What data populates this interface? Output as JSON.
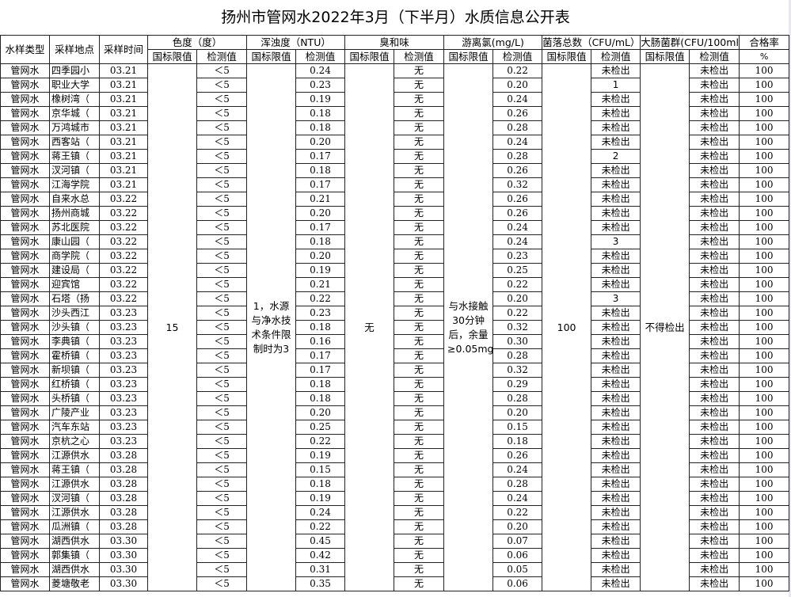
{
  "title": "扬州市管网水2022年3月（下半月）水质信息公开表",
  "headers": {
    "type": "水样类型",
    "location": "采样地点",
    "date": "采样时间",
    "color": "色度（度）",
    "turbidity": "浑浊度（NTU）",
    "odor": "臭和味",
    "chlorine": "游离氯(mg/L)",
    "bacteria": "菌落总数（CFU/mL）",
    "coliform": "大肠菌群(CFU/100ml",
    "rate": "合格率",
    "rate_unit": "%",
    "standard": "国标限值",
    "measured": "检测值"
  },
  "standards": {
    "color": "15",
    "turbidity": "1，水源与净水技术条件限制时为3",
    "odor": "无",
    "chlorine": "与水接触30分钟后，余量≥0.05mg/L",
    "bacteria": "100",
    "coliform": "不得检出"
  },
  "rows": [
    [
      "管网水",
      "四季园小",
      "03.21",
      "＜5",
      "0.24",
      "无",
      "0.22",
      "未检出",
      "未检出",
      "100"
    ],
    [
      "管网水",
      "职业大学",
      "03.21",
      "＜5",
      "0.23",
      "无",
      "0.20",
      "1",
      "未检出",
      "100"
    ],
    [
      "管网水",
      "橡树湾（",
      "03.21",
      "＜5",
      "0.19",
      "无",
      "0.24",
      "未检出",
      "未检出",
      "100"
    ],
    [
      "管网水",
      "京华城（",
      "03.21",
      "＜5",
      "0.18",
      "无",
      "0.26",
      "未检出",
      "未检出",
      "100"
    ],
    [
      "管网水",
      "万鸿城市",
      "03.21",
      "＜5",
      "0.18",
      "无",
      "0.28",
      "未检出",
      "未检出",
      "100"
    ],
    [
      "管网水",
      "西客站（",
      "03.21",
      "＜5",
      "0.20",
      "无",
      "0.24",
      "未检出",
      "未检出",
      "100"
    ],
    [
      "管网水",
      "蒋王镇（",
      "03.21",
      "＜5",
      "0.17",
      "无",
      "0.28",
      "2",
      "未检出",
      "100"
    ],
    [
      "管网水",
      "汊河镇（",
      "03.21",
      "＜5",
      "0.18",
      "无",
      "0.26",
      "未检出",
      "未检出",
      "100"
    ],
    [
      "管网水",
      "江海学院",
      "03.21",
      "＜5",
      "0.17",
      "无",
      "0.32",
      "未检出",
      "未检出",
      "100"
    ],
    [
      "管网水",
      "自来水总",
      "03.22",
      "＜5",
      "0.21",
      "无",
      "0.26",
      "未检出",
      "未检出",
      "100"
    ],
    [
      "管网水",
      "扬州商城",
      "03.22",
      "＜5",
      "0.20",
      "无",
      "0.26",
      "未检出",
      "未检出",
      "100"
    ],
    [
      "管网水",
      "苏北医院",
      "03.22",
      "＜5",
      "0.17",
      "无",
      "0.24",
      "未检出",
      "未检出",
      "100"
    ],
    [
      "管网水",
      "康山园（",
      "03.22",
      "＜5",
      "0.18",
      "无",
      "0.24",
      "3",
      "未检出",
      "100"
    ],
    [
      "管网水",
      "商学院（",
      "03.22",
      "＜5",
      "0.20",
      "无",
      "0.23",
      "未检出",
      "未检出",
      "100"
    ],
    [
      "管网水",
      "建设局（",
      "03.22",
      "＜5",
      "0.19",
      "无",
      "0.25",
      "未检出",
      "未检出",
      "100"
    ],
    [
      "管网水",
      "迎宾馆",
      "03.22",
      "＜5",
      "0.21",
      "无",
      "0.22",
      "未检出",
      "未检出",
      "100"
    ],
    [
      "管网水",
      "石塔（扬",
      "03.22",
      "＜5",
      "0.22",
      "无",
      "0.20",
      "3",
      "未检出",
      "100"
    ],
    [
      "管网水",
      "沙头西江",
      "03.23",
      "＜5",
      "0.23",
      "无",
      "0.22",
      "未检出",
      "未检出",
      "100"
    ],
    [
      "管网水",
      "沙头镇（",
      "03.23",
      "＜5",
      "0.18",
      "无",
      "0.32",
      "未检出",
      "未检出",
      "100"
    ],
    [
      "管网水",
      "李典镇（",
      "03.23",
      "＜5",
      "0.16",
      "无",
      "0.30",
      "未检出",
      "未检出",
      "100"
    ],
    [
      "管网水",
      "霍桥镇（",
      "03.23",
      "＜5",
      "0.17",
      "无",
      "0.28",
      "未检出",
      "未检出",
      "100"
    ],
    [
      "管网水",
      "新坝镇（",
      "03.23",
      "＜5",
      "0.17",
      "无",
      "0.32",
      "未检出",
      "未检出",
      "100"
    ],
    [
      "管网水",
      "红桥镇（",
      "03.23",
      "＜5",
      "0.18",
      "无",
      "0.29",
      "未检出",
      "未检出",
      "100"
    ],
    [
      "管网水",
      "头桥镇（",
      "03.23",
      "＜5",
      "0.18",
      "无",
      "0.28",
      "未检出",
      "未检出",
      "100"
    ],
    [
      "管网水",
      "广陵产业",
      "03.23",
      "＜5",
      "0.20",
      "无",
      "0.20",
      "未检出",
      "未检出",
      "100"
    ],
    [
      "管网水",
      "汽车东站",
      "03.23",
      "＜5",
      "0.25",
      "无",
      "0.15",
      "未检出",
      "未检出",
      "100"
    ],
    [
      "管网水",
      "京杭之心",
      "03.23",
      "＜5",
      "0.22",
      "无",
      "0.18",
      "未检出",
      "未检出",
      "100"
    ],
    [
      "管网水",
      "江源供水",
      "03.28",
      "＜5",
      "0.19",
      "无",
      "0.26",
      "未检出",
      "未检出",
      "100"
    ],
    [
      "管网水",
      "蒋王镇（",
      "03.28",
      "＜5",
      "0.15",
      "无",
      "0.24",
      "未检出",
      "未检出",
      "100"
    ],
    [
      "管网水",
      "江源供水",
      "03.28",
      "＜5",
      "0.18",
      "无",
      "0.28",
      "未检出",
      "未检出",
      "100"
    ],
    [
      "管网水",
      "汊河镇（",
      "03.28",
      "＜5",
      "0.19",
      "无",
      "0.24",
      "未检出",
      "未检出",
      "100"
    ],
    [
      "管网水",
      "江源供水",
      "03.28",
      "＜5",
      "0.24",
      "无",
      "0.22",
      "未检出",
      "未检出",
      "100"
    ],
    [
      "管网水",
      "瓜洲镇（",
      "03.28",
      "＜5",
      "0.22",
      "无",
      "0.20",
      "未检出",
      "未检出",
      "100"
    ],
    [
      "管网水",
      "湖西供水",
      "03.30",
      "＜5",
      "0.45",
      "无",
      "0.07",
      "未检出",
      "未检出",
      "100"
    ],
    [
      "管网水",
      "郭集镇（",
      "03.30",
      "＜5",
      "0.42",
      "无",
      "0.06",
      "未检出",
      "未检出",
      "100"
    ],
    [
      "管网水",
      "湖西供水",
      "03.30",
      "＜5",
      "0.31",
      "无",
      "0.05",
      "未检出",
      "未检出",
      "100"
    ],
    [
      "管网水",
      "菱塘敬老",
      "03.30",
      "＜5",
      "0.35",
      "无",
      "0.06",
      "未检出",
      "未检出",
      "100"
    ]
  ]
}
